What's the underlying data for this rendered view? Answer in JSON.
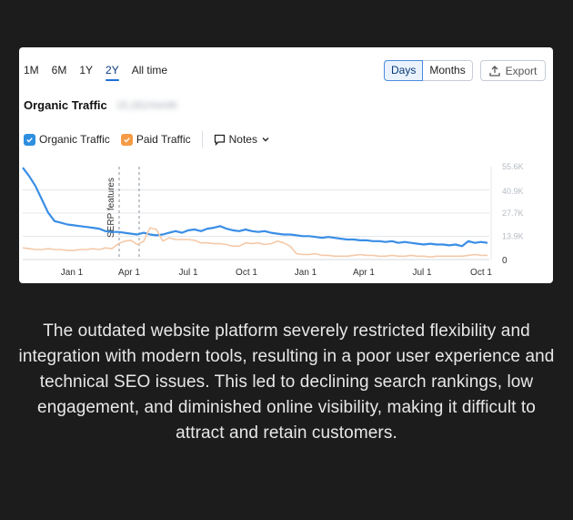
{
  "ranges": [
    {
      "label": "1M",
      "active": false
    },
    {
      "label": "6M",
      "active": false
    },
    {
      "label": "1Y",
      "active": false
    },
    {
      "label": "2Y",
      "active": true
    },
    {
      "label": "All time",
      "active": false
    }
  ],
  "view_toggle": {
    "days": "Days",
    "months": "Months",
    "selected": "Days"
  },
  "export_label": "Export",
  "widget_title": "Organic Traffic",
  "widget_value": "15,181/month",
  "legend": {
    "organic": {
      "label": "Organic Traffic",
      "color": "#2f8fdf"
    },
    "paid": {
      "label": "Paid Traffic",
      "color": "#f59b45"
    },
    "notes": "Notes"
  },
  "annotation": "SERP features",
  "chart_data": {
    "type": "line",
    "x_ticks": [
      "Jan 1",
      "Apr 1",
      "Jul 1",
      "Oct 1",
      "Jan 1",
      "Apr 1",
      "Jul 1",
      "Oct 1"
    ],
    "y_ticks": [
      "55.6K",
      "40.9K",
      "27.7K",
      "13.9K",
      "0"
    ],
    "ylim": [
      0,
      55600
    ],
    "grid": true,
    "series": [
      {
        "name": "Organic Traffic",
        "color": "#3a8ee6",
        "values": [
          55000,
          50000,
          44000,
          36000,
          28000,
          23000,
          22000,
          21000,
          20500,
          20000,
          19500,
          19000,
          18500,
          17000,
          16500,
          16500,
          16000,
          15500,
          15000,
          16000,
          15000,
          14500,
          15000,
          16000,
          17000,
          16000,
          17500,
          18000,
          17000,
          18500,
          19000,
          20000,
          18500,
          17500,
          17000,
          18000,
          17000,
          16500,
          17000,
          16000,
          15500,
          15000,
          15000,
          14500,
          14000,
          14000,
          13500,
          13000,
          13500,
          13000,
          12500,
          12000,
          12000,
          11500,
          11500,
          11000,
          11000,
          10500,
          11000,
          10000,
          10500,
          10000,
          9500,
          9000,
          9500,
          9000,
          9000,
          8500,
          9000,
          8000,
          11000,
          10000,
          10500,
          10000
        ]
      },
      {
        "name": "Paid Traffic",
        "color": "#f5c9a8",
        "values": [
          7000,
          6500,
          6000,
          6000,
          6500,
          6000,
          6000,
          5500,
          5500,
          6000,
          6000,
          6500,
          6000,
          7000,
          6500,
          9500,
          11000,
          11500,
          9000,
          11000,
          19000,
          18000,
          11000,
          13000,
          12000,
          12000,
          12000,
          11500,
          10000,
          10000,
          9500,
          9500,
          9000,
          8000,
          8000,
          10000,
          9500,
          10000,
          9000,
          9500,
          11000,
          10000,
          8000,
          3500,
          3000,
          3000,
          3500,
          2500,
          2500,
          2000,
          2000,
          2000,
          2500,
          3000,
          2500,
          2500,
          2000,
          2000,
          2500,
          2000,
          2000,
          2500,
          2000,
          2000,
          1500,
          2000,
          2000,
          2000,
          2000,
          2000,
          2500,
          3000,
          2500,
          2500
        ]
      }
    ]
  },
  "caption": "The outdated website platform severely restricted flexibility and integration with modern tools, resulting in a poor user experience and technical SEO issues. This led to declining search rankings, low engagement, and diminished online visibility, making it difficult to attract and retain customers."
}
